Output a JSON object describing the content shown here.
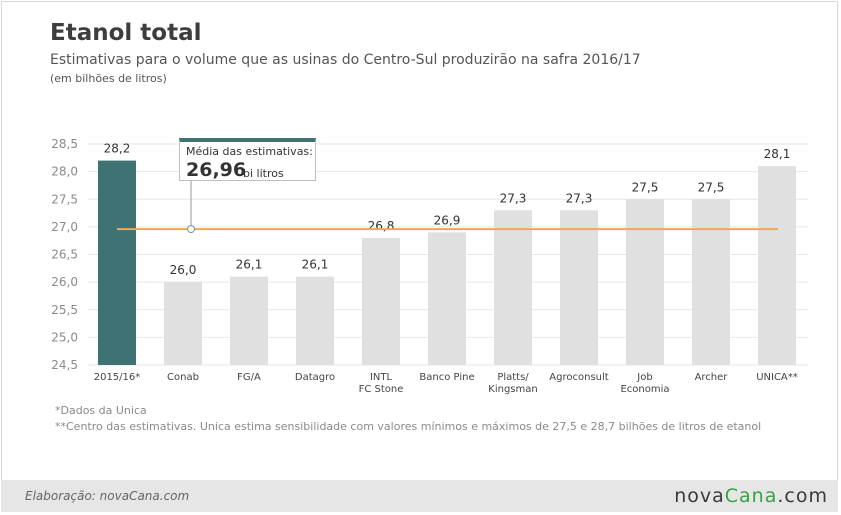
{
  "header": {
    "title": "Etanol total",
    "subtitle": "Estimativas para o volume que as usinas do Centro-Sul produzirão na safra 2016/17",
    "unit": "(em bilhões de litros)"
  },
  "chart_data": {
    "type": "bar",
    "categories": [
      "2015/16*",
      "Conab",
      "FG/A",
      "Datagro",
      "INTL\nFC Stone",
      "Banco Pine",
      "Platts/\nKingsman",
      "Agroconsult",
      "Job\nEconomia",
      "Archer",
      "UNICA**"
    ],
    "values": [
      28.2,
      26.0,
      26.1,
      26.1,
      26.8,
      26.9,
      27.3,
      27.3,
      27.5,
      27.5,
      28.1
    ],
    "value_labels": [
      "28,2",
      "26,0",
      "26,1",
      "26,1",
      "26,8",
      "26,9",
      "27,3",
      "27,3",
      "27,5",
      "27,5",
      "28,1"
    ],
    "ylim": [
      24.5,
      28.5
    ],
    "yticks": [
      24.5,
      25.0,
      25.5,
      26.0,
      26.5,
      27.0,
      27.5,
      28.0,
      28.5
    ],
    "ytick_labels": [
      "24,5",
      "25,0",
      "25,5",
      "26,0",
      "26,5",
      "27,0",
      "27,5",
      "28,0",
      "28,5"
    ],
    "grid": true,
    "average": 26.96,
    "colors": {
      "highlight": "#3f7373",
      "bar": "#e0e0e0",
      "average_line": "#f0a94e",
      "grid": "#e6e6e6"
    }
  },
  "callout": {
    "label": "Média das estimativas:",
    "value": "26,96",
    "unit": "bi litros"
  },
  "notes": {
    "note1": "*Dados da Unica",
    "note2": "**Centro das estimativas. Unica estima sensibilidade com valores mínimos e máximos de 27,5 e 28,7 bilhões de litros de etanol"
  },
  "footer": {
    "credit": "Elaboração: novaCana.com",
    "logo_main": "nova",
    "logo_accent": "Cana",
    "logo_suffix": ".com"
  }
}
